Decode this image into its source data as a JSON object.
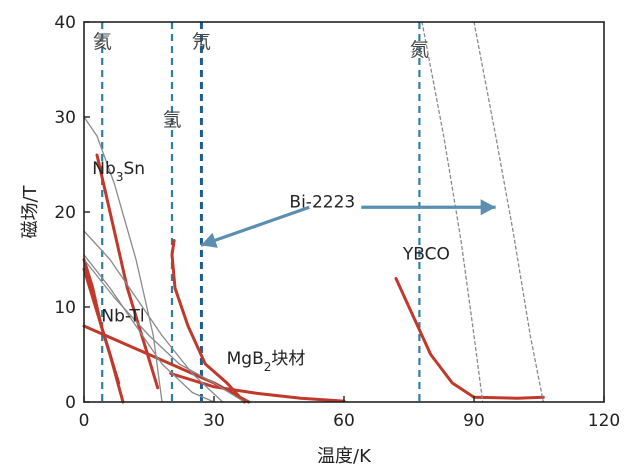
{
  "chart_data": {
    "type": "line",
    "xlabel": "温度/K",
    "ylabel": "磁场/T",
    "xlim": [
      0,
      120
    ],
    "ylim": [
      0,
      40
    ],
    "xticks": [
      0,
      30,
      60,
      90,
      120
    ],
    "yticks": [
      0,
      10,
      20,
      30,
      40
    ],
    "grid": false,
    "reference_lines": [
      {
        "label": "氦",
        "x": 4.2,
        "color": "#2f7f9f"
      },
      {
        "label": "氢",
        "x": 20.3,
        "color": "#2f7f9f"
      },
      {
        "label": "氖",
        "x": 27.1,
        "color": "#1f5f8f"
      },
      {
        "label": "氮",
        "x": 77.4,
        "color": "#2f7f9f"
      }
    ],
    "series": [
      {
        "color": "#c0392b",
        "points": [
          [
            3,
            26
          ],
          [
            6,
            20
          ],
          [
            10,
            12
          ],
          [
            14,
            6
          ],
          [
            17,
            1.5
          ]
        ]
      },
      {
        "color": "#c0392b",
        "points": [
          [
            0,
            15
          ],
          [
            2,
            12
          ],
          [
            4,
            8
          ],
          [
            6,
            5
          ],
          [
            8,
            2
          ]
        ]
      },
      {
        "color": "#c0392b",
        "points": [
          [
            20.8,
            17
          ],
          [
            20.3,
            15.5
          ],
          [
            21,
            12
          ],
          [
            24,
            8
          ],
          [
            28,
            4
          ],
          [
            33,
            2
          ],
          [
            37,
            0
          ]
        ]
      },
      {
        "color": "#c0392b",
        "points": [
          [
            0,
            8
          ],
          [
            10,
            6
          ],
          [
            20,
            4
          ],
          [
            30,
            2
          ],
          [
            38,
            0
          ]
        ]
      },
      {
        "color": "#c0392b",
        "points": [
          [
            0,
            14
          ],
          [
            2,
            11
          ],
          [
            4,
            8
          ],
          [
            6,
            5
          ],
          [
            9,
            0
          ]
        ]
      },
      {
        "color": "#c0392b",
        "points": [
          [
            72,
            13
          ],
          [
            76,
            9
          ],
          [
            80,
            5
          ],
          [
            85,
            2
          ],
          [
            90,
            0.5
          ],
          [
            100,
            0.4
          ],
          [
            106,
            0.5
          ]
        ]
      },
      {
        "color": "#c0392b",
        "points": [
          [
            20,
            3
          ],
          [
            30,
            1.6
          ],
          [
            40,
            0.9
          ],
          [
            50,
            0.4
          ],
          [
            60,
            0.1
          ]
        ]
      },
      {
        "color": "#8a8a8a",
        "points": [
          [
            0,
            30
          ],
          [
            3,
            28
          ],
          [
            7,
            23
          ],
          [
            12,
            15
          ],
          [
            16,
            7
          ],
          [
            18,
            0
          ]
        ]
      },
      {
        "color": "#8a8a8a",
        "points": [
          [
            0,
            15.5
          ],
          [
            6,
            12
          ],
          [
            12,
            8
          ],
          [
            18,
            4
          ],
          [
            25,
            1
          ],
          [
            30,
            0
          ]
        ]
      },
      {
        "color": "#8a8a8a",
        "points": [
          [
            0,
            18
          ],
          [
            6,
            15
          ],
          [
            12,
            11
          ],
          [
            18,
            7
          ],
          [
            25,
            3
          ],
          [
            32,
            0
          ]
        ]
      },
      {
        "color": "#8a8a8a",
        "points": [
          [
            0,
            15
          ],
          [
            7,
            11
          ],
          [
            15,
            7
          ],
          [
            22,
            4
          ],
          [
            30,
            2
          ],
          [
            37,
            0
          ]
        ]
      },
      {
        "color": "#8a8a8a",
        "points": [
          [
            78,
            40
          ],
          [
            83,
            28
          ],
          [
            87,
            17
          ],
          [
            90,
            7
          ],
          [
            92,
            0
          ]
        ]
      },
      {
        "color": "#8a8a8a",
        "points": [
          [
            90,
            40
          ],
          [
            95,
            28
          ],
          [
            99,
            18
          ],
          [
            103,
            7
          ],
          [
            106,
            0
          ]
        ]
      }
    ],
    "annotations": [
      {
        "text": "Nb3Sn",
        "x": 8,
        "y": 24
      },
      {
        "text": "Nb-Tl",
        "x": 9,
        "y": 8.5
      },
      {
        "text": "MgB2块材",
        "x": 42,
        "y": 4
      },
      {
        "text": "Bi-2223",
        "x": 55,
        "y": 20.5
      },
      {
        "text": "YBCO",
        "x": 79,
        "y": 15
      }
    ],
    "arrows": [
      {
        "from": [
          52,
          20.5
        ],
        "to": [
          27,
          16.5
        ]
      },
      {
        "from": [
          64,
          20.5
        ],
        "to": [
          95,
          20.5
        ]
      }
    ]
  }
}
